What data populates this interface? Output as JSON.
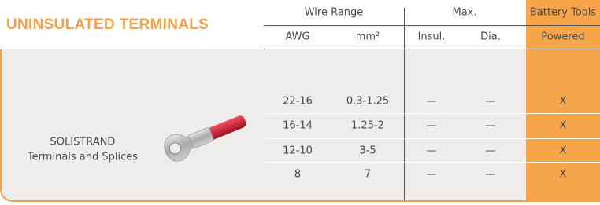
{
  "header": {
    "title": "UNINSULATED TERMINALS",
    "groups": [
      "Wire Range",
      "Max.",
      "Battery Tools"
    ],
    "columns": [
      "AWG",
      "mm²",
      "Insul.",
      "Dia.",
      "Powered"
    ]
  },
  "product": {
    "name": "SOLISTRAND",
    "description": "Terminals and Splices"
  },
  "table": {
    "rows": [
      [
        "22-16",
        "0.3-1.25",
        "—",
        "—",
        "X"
      ],
      [
        "16-14",
        "1.25-2",
        "—",
        "—",
        "X"
      ],
      [
        "12-10",
        "3-5",
        "—",
        "—",
        "X"
      ],
      [
        "8",
        "7",
        "—",
        "—",
        "X"
      ]
    ]
  }
}
